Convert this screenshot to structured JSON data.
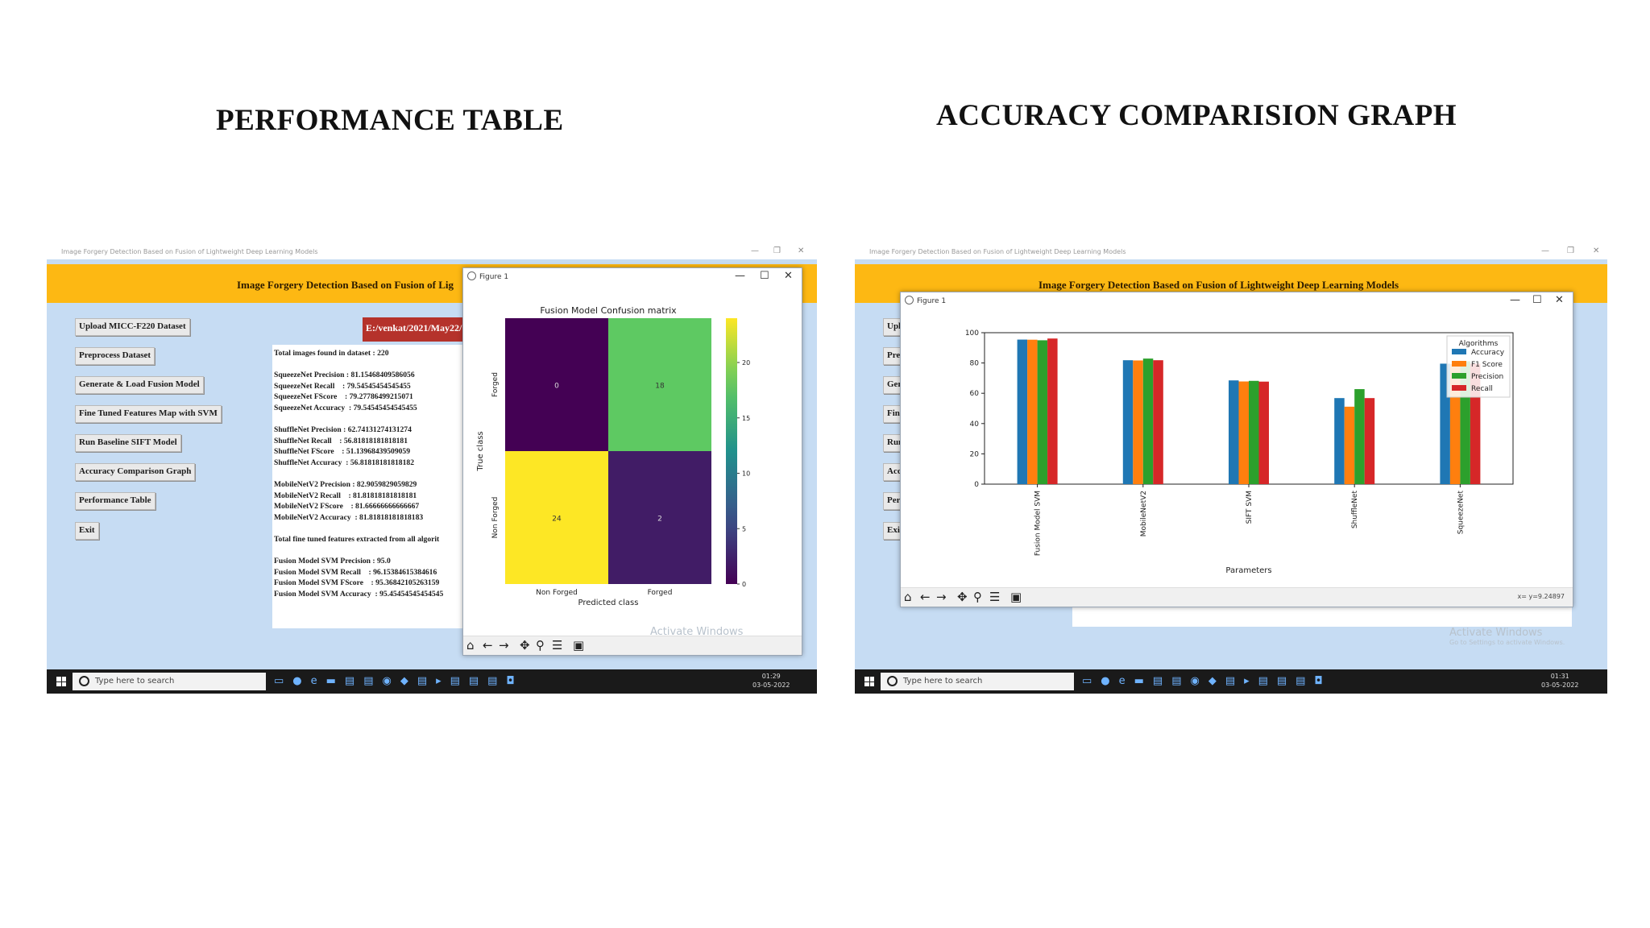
{
  "titles": {
    "left": "PERFORMANCE TABLE",
    "right": "ACCURACY COMPARISION GRAPH"
  },
  "app": {
    "window_title": "Image Forgery Detection Based on Fusion of Lightweight Deep Learning Models",
    "banner_left": "Image Forgery Detection Based on Fusion of Lig",
    "banner_right": "Image Forgery Detection Based on Fusion of Lightweight Deep Learning Models",
    "buttons": [
      "Upload MICC-F220 Dataset",
      "Preprocess Dataset",
      "Generate & Load Fusion Model",
      "Fine Tuned Features Map with SVM",
      "Run Baseline SIFT Model",
      "Accuracy Comparison Graph",
      "Performance Table",
      "Exit"
    ],
    "buttons_clipped": [
      "Upl",
      "Pre",
      "Gen",
      "Fin",
      "Run",
      "Acc",
      "Per",
      "Exi"
    ],
    "path_value": "E:/venkat/2021/May22/",
    "results_lines": [
      "Total images found in dataset : 220",
      "",
      "SqueezeNet Precision : 81.15468409586056",
      "SqueezeNet Recall    : 79.54545454545455",
      "SqueezeNet FScore    : 79.27786499215071",
      "SqueezeNet Accuracy  : 79.54545454545455",
      "",
      "ShuffleNet Precision : 62.74131274131274",
      "ShuffleNet Recall    : 56.81818181818181",
      "ShuffleNet FScore    : 51.13968439509059",
      "ShuffleNet Accuracy  : 56.81818181818182",
      "",
      "MobileNetV2 Precision : 82.9059829059829",
      "MobileNetV2 Recall    : 81.81818181818181",
      "MobileNetV2 FScore    : 81.66666666666667",
      "MobileNetV2 Accuracy  : 81.81818181818183",
      "",
      "Total fine tuned features extracted from all algorit",
      "",
      "Fusion Model SVM Precision : 95.0",
      "Fusion Model SVM Recall    : 96.15384615384616",
      "Fusion Model SVM FScore    : 95.36842105263159",
      "Fusion Model SVM Accuracy  : 95.45454545454545"
    ]
  },
  "figure": {
    "window_title": "Figure 1",
    "minimize": "—",
    "maximize": "☐",
    "close": "✕",
    "coords_readout": "x= y=9.24897"
  },
  "watermark": {
    "line1": "Activate Windows",
    "line2": "Go to Settings to activate Windows."
  },
  "taskbar": {
    "search_placeholder": "Type here to search",
    "time_left": "01:29",
    "date_left": "03-05-2022",
    "time_right": "01:31",
    "date_right": "03-05-2022"
  },
  "toolbar_icons": [
    "home-icon",
    "back-icon",
    "forward-icon",
    "pan-icon",
    "zoom-icon",
    "configure-icon",
    "save-icon"
  ],
  "chart_data": [
    {
      "type": "heatmap",
      "title": "Fusion Model Confusion matrix",
      "xlabel": "Predicted class",
      "ylabel": "True class",
      "x_categories": [
        "Non Forged",
        "Forged"
      ],
      "y_categories": [
        "Forged",
        "Non Forged"
      ],
      "values": [
        [
          0,
          18
        ],
        [
          24,
          2
        ]
      ],
      "colorbar_ticks": [
        0,
        5,
        10,
        15,
        20
      ],
      "colorscale": "viridis",
      "range": [
        0,
        24
      ]
    },
    {
      "type": "bar",
      "xlabel": "Parameters",
      "ylabel": "",
      "categories": [
        "Fusion Model SVM",
        "MobileNetV2",
        "SIFT SVM",
        "ShuffleNet",
        "SqueezeNet"
      ],
      "series": [
        {
          "name": "Accuracy",
          "color": "#1f77b4",
          "values": [
            95.45,
            81.82,
            68.5,
            56.82,
            79.55
          ]
        },
        {
          "name": "F1 Score",
          "color": "#ff7f0e",
          "values": [
            95.37,
            81.67,
            67.8,
            51.14,
            79.28
          ]
        },
        {
          "name": "Precision",
          "color": "#2ca02c",
          "values": [
            95.0,
            82.91,
            68.2,
            62.74,
            81.15
          ]
        },
        {
          "name": "Recall",
          "color": "#d62728",
          "values": [
            96.15,
            81.82,
            67.7,
            56.82,
            79.55
          ]
        }
      ],
      "ylim": [
        0,
        100
      ],
      "yticks": [
        0,
        20,
        40,
        60,
        80,
        100
      ],
      "legend_title": "Algorithms",
      "legend_position": "top-right"
    }
  ]
}
